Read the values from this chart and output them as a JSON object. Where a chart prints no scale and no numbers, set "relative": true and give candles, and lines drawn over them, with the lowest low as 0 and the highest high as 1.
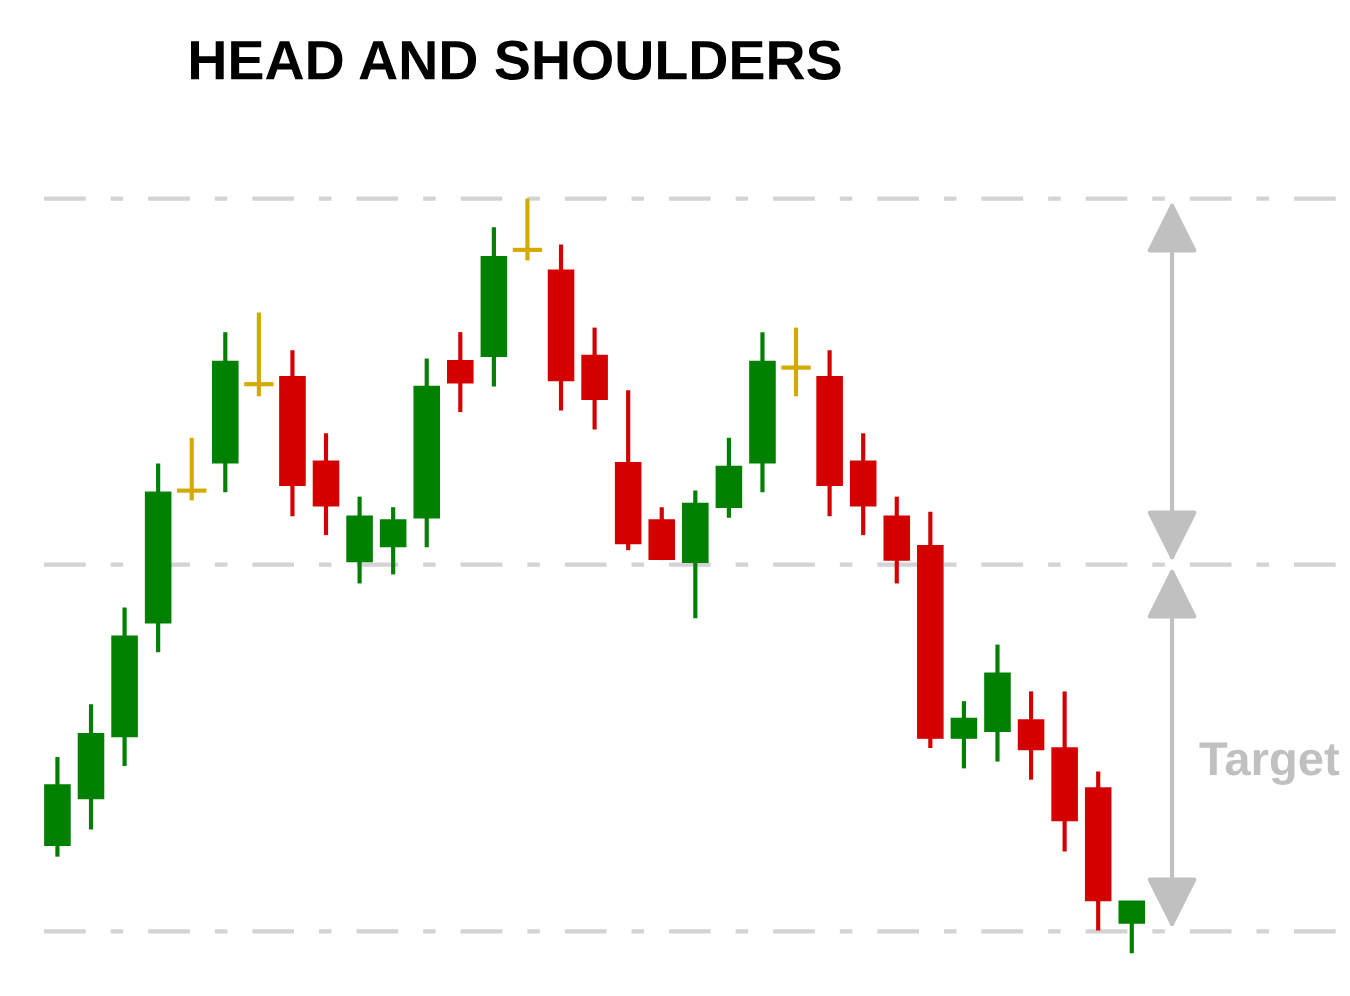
{
  "chart_data": {
    "type": "candlestick",
    "title": "HEAD AND SHOULDERS",
    "relative": true,
    "categories": [
      null,
      null,
      null,
      null,
      null,
      null,
      null,
      null,
      null,
      null,
      null,
      null,
      null,
      null,
      null,
      null,
      null,
      null,
      null,
      null,
      null,
      null,
      null,
      null,
      null,
      null,
      null,
      null,
      null,
      null,
      null,
      null,
      null
    ],
    "ohlc": [
      [
        0.143,
        0.26,
        0.128,
        0.223
      ],
      [
        0.205,
        0.33,
        0.164,
        0.291
      ],
      [
        0.287,
        0.458,
        0.248,
        0.42
      ],
      [
        0.438,
        0.649,
        0.399,
        0.611
      ],
      [
        0.613,
        0.683,
        0.6,
        0.613
      ],
      [
        0.65,
        0.823,
        0.611,
        0.784
      ],
      [
        0.754,
        0.849,
        0.738,
        0.754
      ],
      [
        0.764,
        0.799,
        0.579,
        0.62
      ],
      [
        0.652,
        0.689,
        0.554,
        0.593
      ],
      [
        0.519,
        0.605,
        0.49,
        0.579
      ],
      [
        0.539,
        0.591,
        0.502,
        0.574
      ],
      [
        0.577,
        0.788,
        0.538,
        0.751
      ],
      [
        0.785,
        0.823,
        0.717,
        0.756
      ],
      [
        0.791,
        0.962,
        0.751,
        0.923
      ],
      [
        0.932,
        1.0,
        0.918,
        0.932
      ],
      [
        0.905,
        0.939,
        0.719,
        0.759
      ],
      [
        0.792,
        0.829,
        0.694,
        0.734
      ],
      [
        0.65,
        0.746,
        0.534,
        0.543
      ],
      [
        0.574,
        0.591,
        0.521,
        0.522
      ],
      [
        0.518,
        0.613,
        0.444,
        0.596
      ],
      [
        0.591,
        0.683,
        0.577,
        0.645
      ],
      [
        0.65,
        0.823,
        0.611,
        0.784
      ],
      [
        0.776,
        0.829,
        0.738,
        0.776
      ],
      [
        0.764,
        0.799,
        0.579,
        0.62
      ],
      [
        0.652,
        0.689,
        0.554,
        0.593
      ],
      [
        0.579,
        0.605,
        0.49,
        0.521
      ],
      [
        0.54,
        0.585,
        0.272,
        0.285
      ],
      [
        0.285,
        0.334,
        0.245,
        0.311
      ],
      [
        0.294,
        0.409,
        0.254,
        0.371
      ],
      [
        0.309,
        0.347,
        0.23,
        0.27
      ],
      [
        0.272,
        0.347,
        0.135,
        0.176
      ],
      [
        0.219,
        0.241,
        0.03,
        0.07
      ],
      [
        0.04,
        0.069,
        0.0,
        0.069
      ]
    ],
    "colors": [
      "#008000",
      "#008000",
      "#008000",
      "#008000",
      "#d4aa00",
      "#008000",
      "#d4aa00",
      "#d40000",
      "#d40000",
      "#008000",
      "#008000",
      "#008000",
      "#d40000",
      "#008000",
      "#d4aa00",
      "#d40000",
      "#d40000",
      "#d40000",
      "#d40000",
      "#008000",
      "#008000",
      "#008000",
      "#d4aa00",
      "#d40000",
      "#d40000",
      "#d40000",
      "#d40000",
      "#008000",
      "#008000",
      "#d40000",
      "#d40000",
      "#d40000",
      "#008000"
    ],
    "ref_lines": [
      {
        "axis": "y",
        "value": 1.0,
        "color": "#d3d3d3",
        "line_style": "dashdot"
      },
      {
        "axis": "y",
        "value": 0.515,
        "color": "#d3d3d3",
        "line_style": "dashdot"
      },
      {
        "axis": "y",
        "value": 0.029,
        "color": "#d3d3d3",
        "line_style": "dashdot"
      }
    ],
    "annotations": [
      "Target"
    ]
  }
}
